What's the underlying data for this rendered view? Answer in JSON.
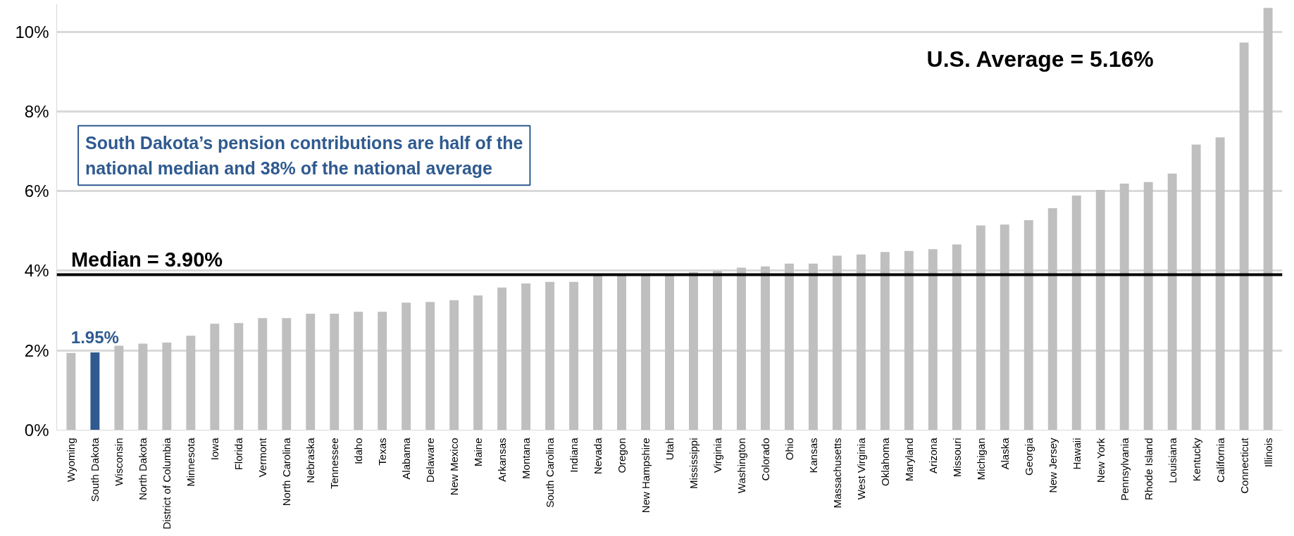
{
  "chart_data": {
    "type": "bar",
    "categories": [
      "Wyoming",
      "South Dakota",
      "Wisconsin",
      "North Dakota",
      "District of Columbia",
      "Minnesota",
      "Iowa",
      "Florida",
      "Vermont",
      "North Carolina",
      "Nebraska",
      "Tennessee",
      "Idaho",
      "Texas",
      "Alabama",
      "Delaware",
      "New Mexico",
      "Maine",
      "Arkansas",
      "Montana",
      "South Carolina",
      "Indiana",
      "Nevada",
      "Oregon",
      "New Hampshire",
      "Utah",
      "Mississippi",
      "Virginia",
      "Washington",
      "Colorado",
      "Ohio",
      "Kansas",
      "Massachusetts",
      "West Virginia",
      "Oklahoma",
      "Maryland",
      "Arizona",
      "Missouri",
      "Michigan",
      "Alaska",
      "Georgia",
      "New Jersey",
      "Hawaii",
      "New York",
      "Pennsylvania",
      "Rhode Island",
      "Louisiana",
      "Kentucky",
      "California",
      "Connecticut",
      "Illinois"
    ],
    "values": [
      1.94,
      1.95,
      2.12,
      2.17,
      2.2,
      2.37,
      2.67,
      2.69,
      2.81,
      2.81,
      2.92,
      2.92,
      2.97,
      2.97,
      3.2,
      3.22,
      3.26,
      3.38,
      3.58,
      3.68,
      3.72,
      3.72,
      3.88,
      3.9,
      3.93,
      3.93,
      3.97,
      4.0,
      4.08,
      4.11,
      4.18,
      4.18,
      4.38,
      4.41,
      4.47,
      4.5,
      4.54,
      4.66,
      5.14,
      5.16,
      5.27,
      5.57,
      5.89,
      6.03,
      6.19,
      6.23,
      6.44,
      7.17,
      7.35,
      9.73,
      10.6
    ],
    "colors": [
      "#bfbfbf",
      "#2f5a8f",
      "#bfbfbf",
      "#bfbfbf",
      "#bfbfbf",
      "#bfbfbf",
      "#bfbfbf",
      "#bfbfbf",
      "#bfbfbf",
      "#bfbfbf",
      "#bfbfbf",
      "#bfbfbf",
      "#bfbfbf",
      "#bfbfbf",
      "#bfbfbf",
      "#bfbfbf",
      "#bfbfbf",
      "#bfbfbf",
      "#bfbfbf",
      "#bfbfbf",
      "#bfbfbf",
      "#bfbfbf",
      "#bfbfbf",
      "#bfbfbf",
      "#bfbfbf",
      "#bfbfbf",
      "#bfbfbf",
      "#bfbfbf",
      "#bfbfbf",
      "#bfbfbf",
      "#bfbfbf",
      "#bfbfbf",
      "#bfbfbf",
      "#bfbfbf",
      "#bfbfbf",
      "#bfbfbf",
      "#bfbfbf",
      "#bfbfbf",
      "#bfbfbf",
      "#bfbfbf",
      "#bfbfbf",
      "#bfbfbf",
      "#bfbfbf",
      "#bfbfbf",
      "#bfbfbf",
      "#bfbfbf",
      "#bfbfbf",
      "#bfbfbf",
      "#bfbfbf",
      "#bfbfbf",
      "#bfbfbf"
    ],
    "value_labels": [
      null,
      "1.95%",
      null,
      null,
      null,
      null,
      null,
      null,
      null,
      null,
      null,
      null,
      null,
      null,
      null,
      null,
      null,
      null,
      null,
      null,
      null,
      null,
      null,
      null,
      null,
      null,
      null,
      null,
      null,
      null,
      null,
      null,
      null,
      null,
      null,
      null,
      null,
      null,
      null,
      null,
      null,
      null,
      null,
      null,
      null,
      null,
      null,
      null,
      null,
      null,
      null
    ],
    "ylim": [
      0,
      10.7
    ],
    "yticks": [
      {
        "value": 0,
        "label": "0%"
      },
      {
        "value": 2,
        "label": "2%"
      },
      {
        "value": 4,
        "label": "4%"
      },
      {
        "value": 6,
        "label": "6%"
      },
      {
        "value": 8,
        "label": "8%"
      },
      {
        "value": 10,
        "label": "10%"
      }
    ],
    "grid": "y",
    "ref_lines": [
      {
        "axis": "y",
        "value": 3.9,
        "label": "Median = 3.90%",
        "color": "#000000"
      }
    ],
    "annotations": [
      "U.S. Average = 5.16%",
      "South Dakota’s pension contributions are half of the\nnational median and 38% of the national average"
    ]
  }
}
